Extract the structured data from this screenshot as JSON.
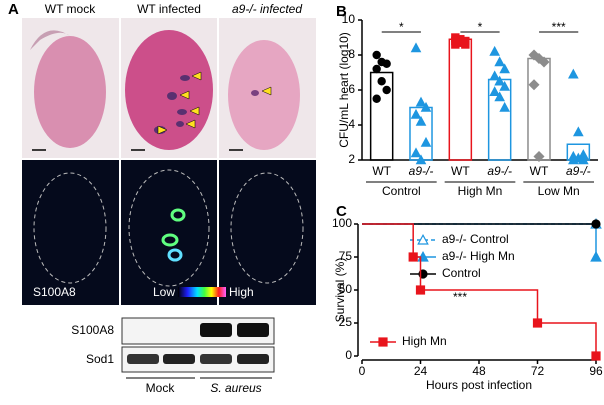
{
  "panel_a": {
    "label": "A",
    "columns": [
      "WT mock",
      "WT infected",
      "a9-/- infected"
    ],
    "stain": "S100A8",
    "scale_low": "Low",
    "scale_high": "High",
    "blot_rows": [
      "S100A8",
      "Sod1"
    ],
    "blot_groups": [
      "Mock",
      "S. aureus"
    ]
  },
  "chart_data": [
    {
      "type": "scatter-bar",
      "label": "B",
      "ylabel": "CFU/mL heart (log10)",
      "categories": [
        "WT",
        "a9-/-",
        "WT",
        "a9-/-",
        "WT",
        "a9-/-"
      ],
      "groups": [
        "Control",
        "High Mn",
        "Low Mn"
      ],
      "values": [
        7.0,
        5.0,
        8.9,
        6.6,
        7.8,
        2.9
      ],
      "points": [
        [
          8.0,
          7.6,
          7.5,
          7.2,
          6.5,
          6.0,
          5.5
        ],
        [
          8.4,
          5.3,
          5.0,
          4.6,
          4.2,
          3.0,
          2.4,
          2.0
        ],
        [
          9.0,
          8.9,
          8.8,
          8.8,
          8.7,
          8.6,
          8.6
        ],
        [
          8.2,
          7.6,
          7.2,
          6.8,
          6.5,
          6.2,
          5.9,
          5.6,
          5.0
        ],
        [
          8.0,
          7.8,
          7.6,
          6.3,
          2.2
        ],
        [
          6.9,
          3.6,
          2.3,
          2.2,
          2.1,
          2.0,
          2.0
        ]
      ],
      "colors": [
        "#000000",
        "#1e96e0",
        "#e8141c",
        "#1e96e0",
        "#8c8c8c",
        "#1e96e0"
      ],
      "markers": [
        "circle",
        "triangle",
        "square",
        "triangle",
        "diamond",
        "triangle"
      ],
      "significance": [
        "*",
        "*",
        "***"
      ],
      "ylim": [
        2,
        10
      ],
      "yticks": [
        2,
        4,
        6,
        8,
        10
      ]
    },
    {
      "type": "step",
      "label": "C",
      "xlabel": "Hours post infection",
      "ylabel": "Survival (%)",
      "xlim": [
        0,
        96
      ],
      "xticks": [
        0,
        24,
        48,
        72,
        96
      ],
      "ylim": [
        0,
        100
      ],
      "yticks": [
        0,
        25,
        50,
        75,
        100
      ],
      "annotation": "***",
      "series": [
        {
          "name": "a9-/- Control",
          "color": "#1e96e0",
          "marker": "triangle-open",
          "dashed": true,
          "x": [
            0,
            96
          ],
          "values": [
            100,
            100
          ]
        },
        {
          "name": "a9-/- High Mn",
          "color": "#1e96e0",
          "marker": "triangle",
          "dashed": false,
          "x": [
            0,
            96
          ],
          "values": [
            100,
            75
          ]
        },
        {
          "name": "Control",
          "color": "#000000",
          "marker": "circle",
          "dashed": false,
          "x": [
            0,
            96
          ],
          "values": [
            100,
            100
          ]
        },
        {
          "name": "High Mn",
          "color": "#e8141c",
          "marker": "square",
          "dashed": false,
          "x": [
            0,
            21,
            24,
            72,
            96
          ],
          "values": [
            100,
            75,
            50,
            25,
            0
          ]
        }
      ]
    }
  ]
}
